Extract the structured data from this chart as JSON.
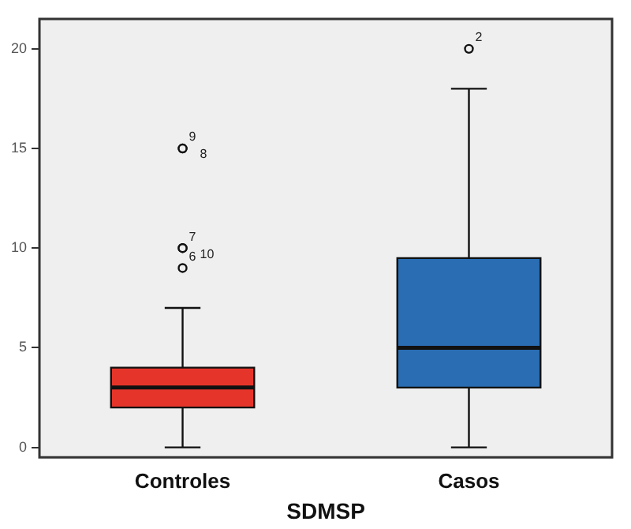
{
  "chart_data": {
    "type": "box",
    "xlabel": "SDMSP",
    "categories": [
      "Controles",
      "Casos"
    ],
    "colors": [
      "#e5352b",
      "#2a6db3"
    ],
    "boxes": [
      {
        "low": 0,
        "q1": 2,
        "median": 3,
        "q3": 4,
        "high": 7,
        "outliers": [
          9,
          10,
          10,
          15,
          15
        ]
      },
      {
        "low": 0,
        "q1": 3,
        "median": 5,
        "q3": 9.5,
        "high": 18,
        "outliers": [
          20
        ]
      }
    ],
    "ylim": [
      -0.5,
      21.5
    ],
    "yticks": [
      0,
      5,
      10,
      15,
      20
    ],
    "grid": false,
    "legend": false,
    "annotations": [
      "6",
      "7",
      "10",
      "9",
      "8",
      "2"
    ]
  }
}
